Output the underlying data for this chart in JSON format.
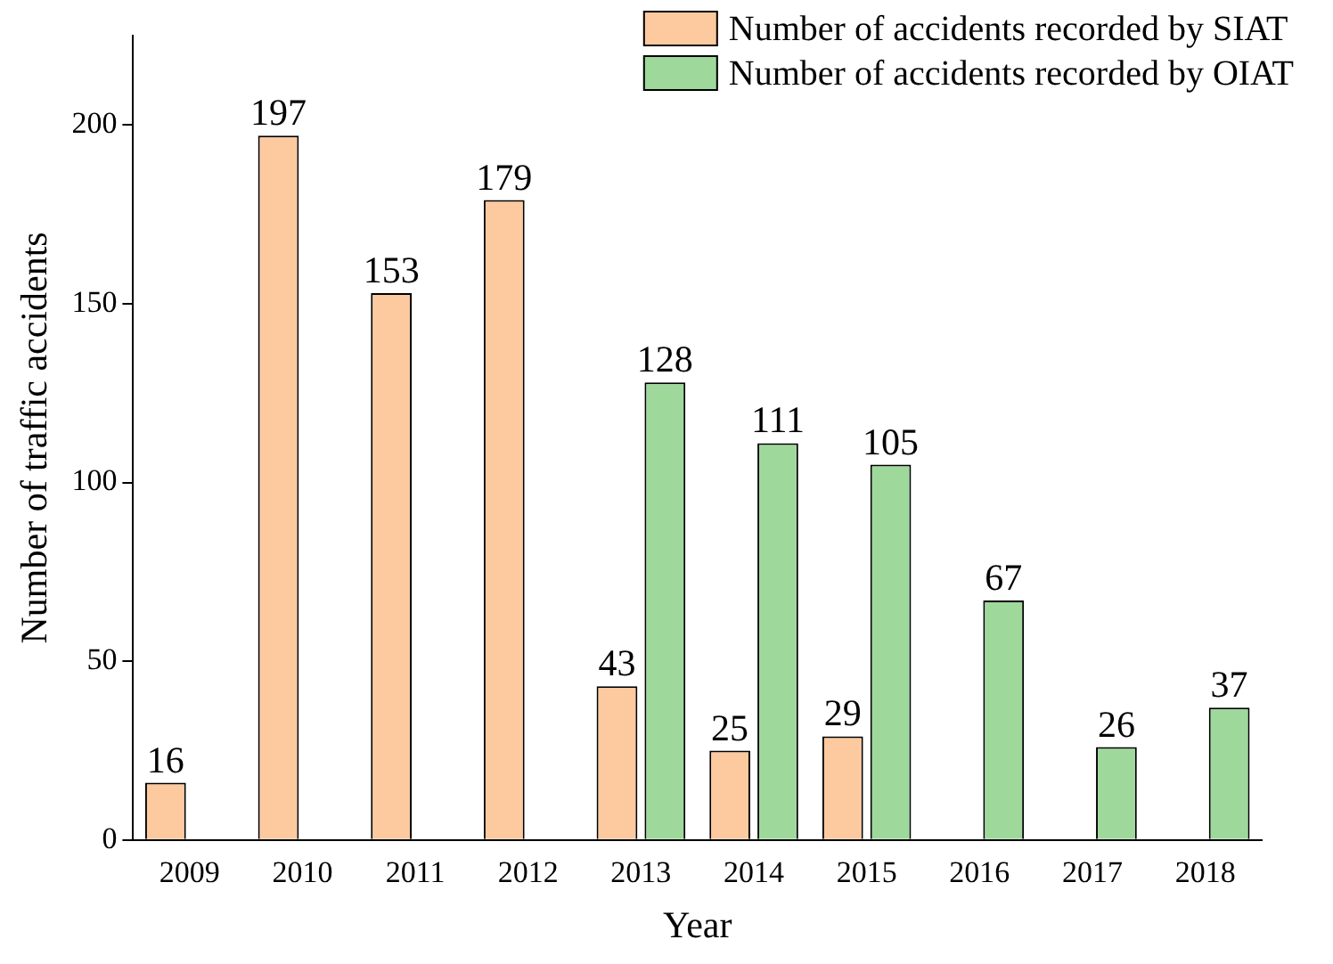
{
  "chart_data": {
    "type": "bar",
    "xlabel": "Year",
    "ylabel": "Number of traffic accidents",
    "categories": [
      "2009",
      "2010",
      "2011",
      "2012",
      "2013",
      "2014",
      "2015",
      "2016",
      "2017",
      "2018"
    ],
    "series": [
      {
        "name": "Number of accidents recorded by SIAT",
        "color": "#fdc99e",
        "values": [
          16,
          197,
          153,
          179,
          43,
          25,
          29,
          null,
          null,
          null
        ]
      },
      {
        "name": "Number of accidents recorded by OIAT",
        "color": "#9ed99b",
        "values": [
          null,
          null,
          null,
          null,
          128,
          111,
          105,
          67,
          26,
          37
        ]
      }
    ],
    "ylim": [
      0,
      225
    ],
    "yticks": [
      0,
      50,
      100,
      150,
      200
    ],
    "grid": false,
    "legend": "top right",
    "data_labels": true
  }
}
